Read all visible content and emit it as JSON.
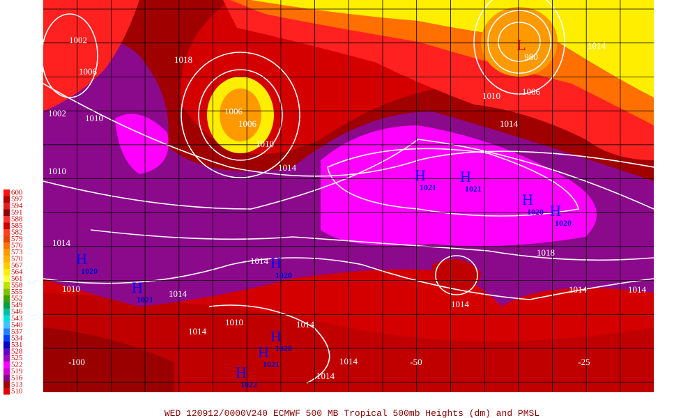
{
  "footer": "WED 120912/0000V240  ECMWF  500 MB Tropical 500mb Heights (dm) and PMSL",
  "legend": [
    {
      "label": "600",
      "color": "#ff1010"
    },
    {
      "label": "597",
      "color": "#b00000"
    },
    {
      "label": "594",
      "color": "#e02020"
    },
    {
      "label": "591",
      "color": "#900000"
    },
    {
      "label": "588",
      "color": "#ff3030"
    },
    {
      "label": "585",
      "color": "#c80000"
    },
    {
      "label": "582",
      "color": "#ff4020"
    },
    {
      "label": "579",
      "color": "#e84010"
    },
    {
      "label": "576",
      "color": "#ff7000"
    },
    {
      "label": "573",
      "color": "#ff9900"
    },
    {
      "label": "570",
      "color": "#ffb000"
    },
    {
      "label": "567",
      "color": "#ffcc00"
    },
    {
      "label": "564",
      "color": "#ffee00"
    },
    {
      "label": "561",
      "color": "#ffff40"
    },
    {
      "label": "558",
      "color": "#c0e000"
    },
    {
      "label": "555",
      "color": "#80c000"
    },
    {
      "label": "552",
      "color": "#40a000"
    },
    {
      "label": "549",
      "color": "#00a040"
    },
    {
      "label": "546",
      "color": "#00c0a0"
    },
    {
      "label": "543",
      "color": "#00e0e0"
    },
    {
      "label": "540",
      "color": "#40c0ff"
    },
    {
      "label": "537",
      "color": "#2080ff"
    },
    {
      "label": "534",
      "color": "#0040ff"
    },
    {
      "label": "531",
      "color": "#0000c0"
    },
    {
      "label": "528",
      "color": "#6000c0"
    },
    {
      "label": "525",
      "color": "#a000c0"
    },
    {
      "label": "522",
      "color": "#ff00ff"
    },
    {
      "label": "519",
      "color": "#d000d0"
    },
    {
      "label": "516",
      "color": "#8b008b"
    },
    {
      "label": "513",
      "color": "#a00000"
    },
    {
      "label": "510",
      "color": "#e00000"
    }
  ],
  "longitudes": [
    "-100",
    "-50",
    "-25"
  ],
  "isobar_labels": [
    "1002",
    "1006",
    "1002",
    "1010",
    "1018",
    "1006",
    "1006",
    "1010",
    "1014",
    "1010",
    "980",
    "1006",
    "1010",
    "1014",
    "1014",
    "1018",
    "1014",
    "1014",
    "1014",
    "1014",
    "1010",
    "1014",
    "1014",
    "1010",
    "1014",
    "1014",
    "1014",
    "1014"
  ],
  "low": "L",
  "highs": [
    {
      "symbol": "H",
      "pressure": "1021"
    },
    {
      "symbol": "H",
      "pressure": "1021"
    },
    {
      "symbol": "H",
      "pressure": "1020"
    },
    {
      "symbol": "H",
      "pressure": "1020"
    },
    {
      "symbol": "H",
      "pressure": "1020"
    },
    {
      "symbol": "H",
      "pressure": "1021"
    },
    {
      "symbol": "H",
      "pressure": "1020"
    },
    {
      "symbol": "H",
      "pressure": "1020"
    },
    {
      "symbol": "H",
      "pressure": "1021"
    },
    {
      "symbol": "H",
      "pressure": "1022"
    }
  ]
}
